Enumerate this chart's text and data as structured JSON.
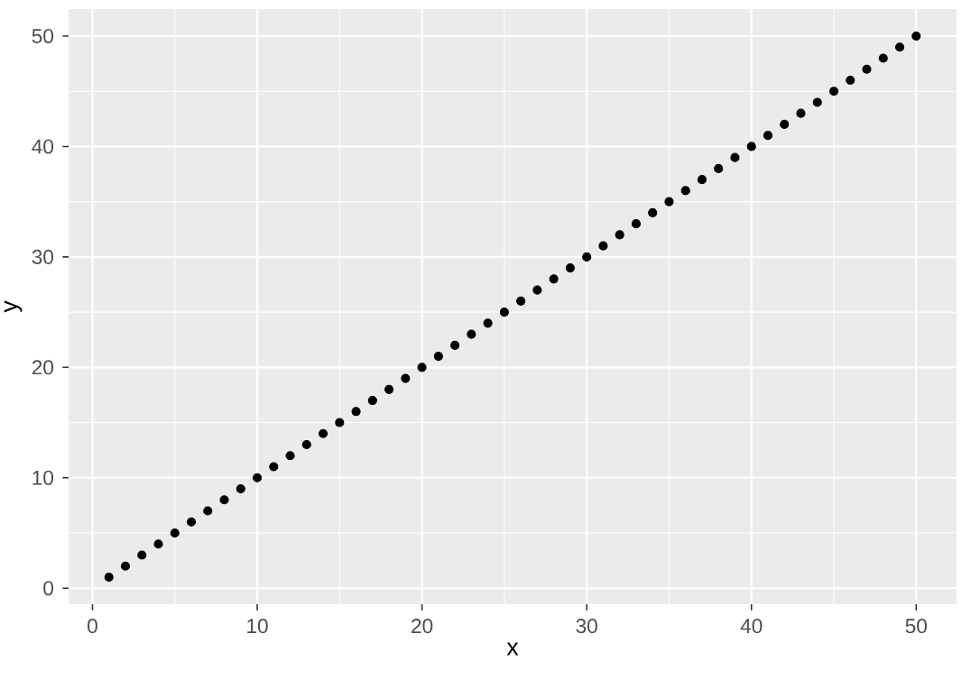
{
  "chart_data": {
    "type": "scatter",
    "xlabel": "x",
    "ylabel": "y",
    "x": [
      1,
      2,
      3,
      4,
      5,
      6,
      7,
      8,
      9,
      10,
      11,
      12,
      13,
      14,
      15,
      16,
      17,
      18,
      19,
      20,
      21,
      22,
      23,
      24,
      25,
      26,
      27,
      28,
      29,
      30,
      31,
      32,
      33,
      34,
      35,
      36,
      37,
      38,
      39,
      40,
      41,
      42,
      43,
      44,
      45,
      46,
      47,
      48,
      49,
      50
    ],
    "values": [
      1,
      2,
      3,
      4,
      5,
      6,
      7,
      8,
      9,
      10,
      11,
      12,
      13,
      14,
      15,
      16,
      17,
      18,
      19,
      20,
      21,
      22,
      23,
      24,
      25,
      26,
      27,
      28,
      29,
      30,
      31,
      32,
      33,
      34,
      35,
      36,
      37,
      38,
      39,
      40,
      41,
      42,
      43,
      44,
      45,
      46,
      47,
      48,
      49,
      50
    ],
    "color": "#000000",
    "marker": "circle",
    "grid": true,
    "xlim": [
      -1.45,
      52.45
    ],
    "ylim": [
      -1.45,
      52.45
    ],
    "xticks": [
      0,
      10,
      20,
      30,
      40,
      50
    ],
    "yticks": [
      0,
      10,
      20,
      30,
      40,
      50
    ]
  }
}
